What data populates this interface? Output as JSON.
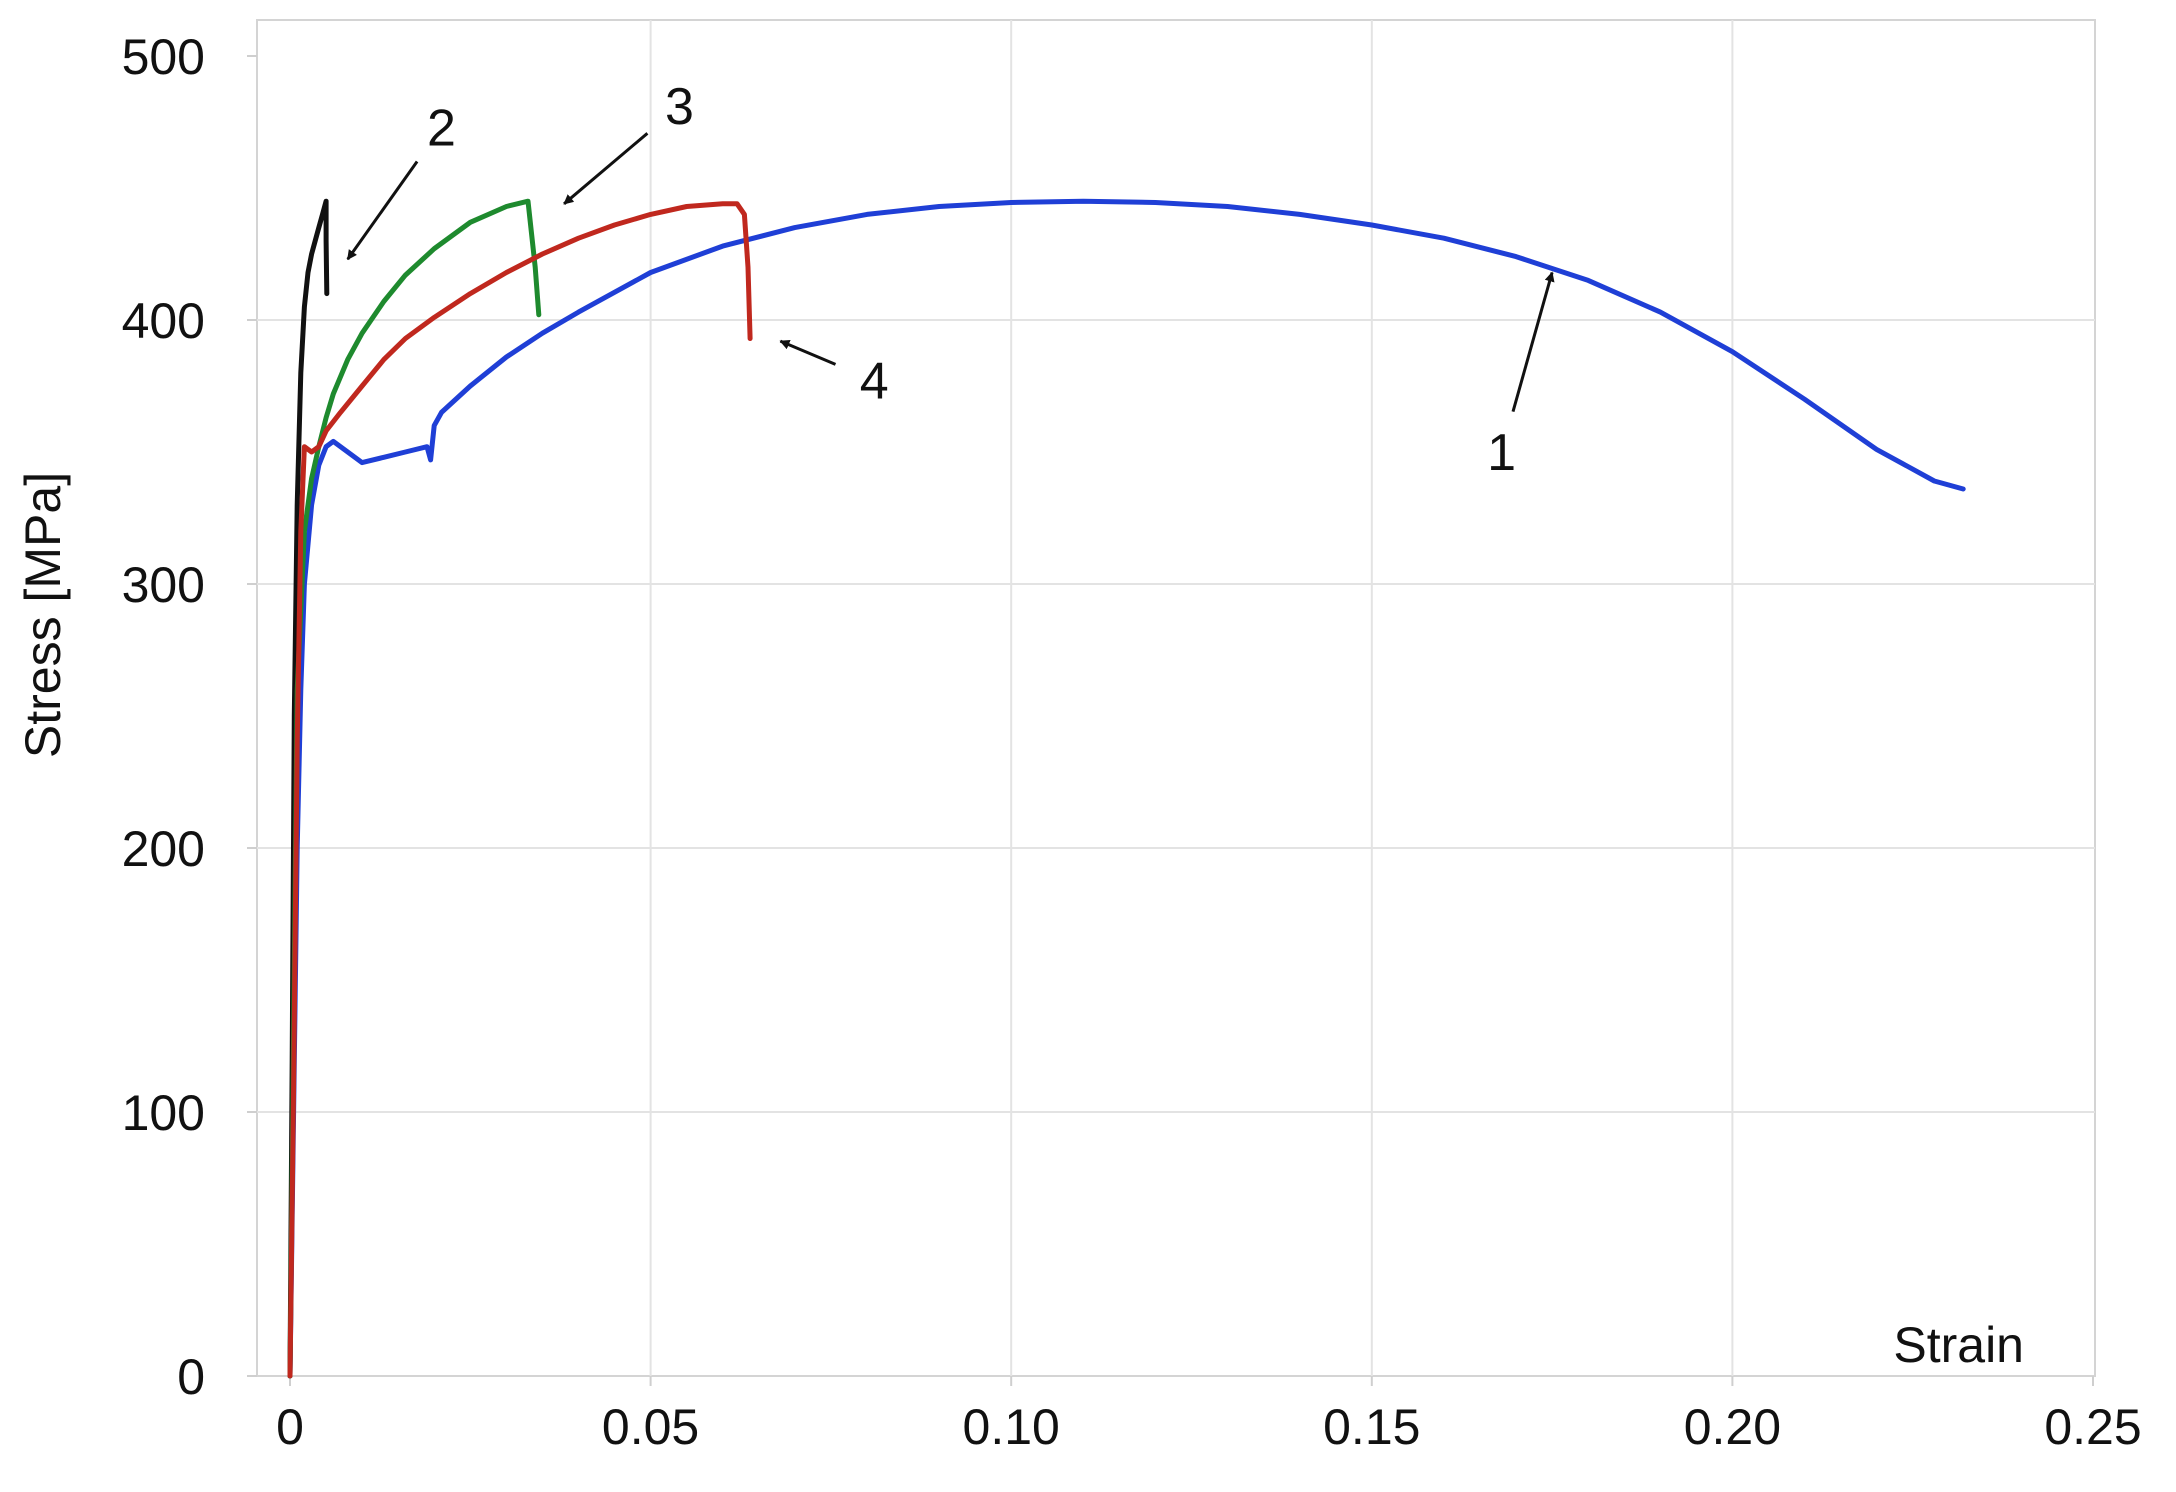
{
  "chart_data": {
    "type": "line",
    "title": "",
    "xlabel": "Strain",
    "ylabel": "Stress [MPa]",
    "xlim": [
      0,
      0.25
    ],
    "ylim": [
      0,
      500
    ],
    "x_tick_labels": [
      "0",
      "0.05",
      "0.10",
      "0.15",
      "0.20",
      "0.25"
    ],
    "y_tick_labels": [
      "0",
      "100",
      "200",
      "300",
      "400",
      "500"
    ],
    "grid": "light gray",
    "legend": "none",
    "series": [
      {
        "label": "1",
        "color": "#1f3fd6",
        "x": [
          0,
          0.0005,
          0.001,
          0.0015,
          0.002,
          0.003,
          0.004,
          0.005,
          0.006,
          0.008,
          0.01,
          0.013,
          0.016,
          0.019,
          0.0195,
          0.02,
          0.021,
          0.025,
          0.03,
          0.035,
          0.04,
          0.05,
          0.06,
          0.07,
          0.08,
          0.09,
          0.1,
          0.11,
          0.12,
          0.13,
          0.14,
          0.15,
          0.16,
          0.17,
          0.18,
          0.19,
          0.2,
          0.21,
          0.22,
          0.228,
          0.232
        ],
        "y": [
          0,
          100,
          200,
          260,
          300,
          330,
          345,
          352,
          354,
          350,
          346,
          348,
          350,
          352,
          347,
          360,
          365,
          375,
          386,
          395,
          403,
          418,
          428,
          435,
          440,
          443,
          444.5,
          445,
          444.5,
          443,
          440,
          436,
          431,
          424,
          415,
          403,
          388,
          370,
          351,
          339,
          336
        ]
      },
      {
        "label": "2",
        "color": "#111111",
        "x": [
          0,
          0.0003,
          0.0006,
          0.001,
          0.0015,
          0.002,
          0.0025,
          0.003,
          0.0035,
          0.004,
          0.0045,
          0.005,
          0.005,
          0.0051
        ],
        "y": [
          0,
          120,
          250,
          330,
          380,
          405,
          418,
          425,
          430,
          435,
          440,
          445,
          430,
          410
        ]
      },
      {
        "label": "3",
        "color": "#1e8a2e",
        "x": [
          0,
          0.0005,
          0.001,
          0.002,
          0.003,
          0.004,
          0.005,
          0.006,
          0.008,
          0.01,
          0.013,
          0.016,
          0.02,
          0.025,
          0.03,
          0.033,
          0.034,
          0.0345
        ],
        "y": [
          0,
          130,
          260,
          320,
          340,
          352,
          363,
          372,
          385,
          395,
          407,
          417,
          427,
          437,
          443,
          445,
          420,
          402
        ]
      },
      {
        "label": "4",
        "color": "#c0281e",
        "x": [
          0,
          0.0005,
          0.001,
          0.0015,
          0.002,
          0.003,
          0.004,
          0.005,
          0.007,
          0.01,
          0.013,
          0.016,
          0.02,
          0.025,
          0.03,
          0.035,
          0.04,
          0.045,
          0.05,
          0.055,
          0.06,
          0.062,
          0.063,
          0.0635,
          0.0638
        ],
        "y": [
          0,
          110,
          240,
          320,
          352,
          350,
          352,
          358,
          365,
          375,
          385,
          393,
          401,
          410,
          418,
          425,
          431,
          436,
          440,
          443,
          444,
          444,
          440,
          420,
          393
        ]
      }
    ],
    "annotations": [
      {
        "text": "1",
        "x": 0.168,
        "y": 350,
        "arrow_to_x": 0.175,
        "arrow_to_y": 418
      },
      {
        "text": "2",
        "x": 0.021,
        "y": 473,
        "arrow_to_x": 0.008,
        "arrow_to_y": 423
      },
      {
        "text": "3",
        "x": 0.054,
        "y": 481,
        "arrow_to_x": 0.038,
        "arrow_to_y": 444
      },
      {
        "text": "4",
        "x": 0.081,
        "y": 377,
        "arrow_to_x": 0.068,
        "arrow_to_y": 392
      }
    ]
  }
}
